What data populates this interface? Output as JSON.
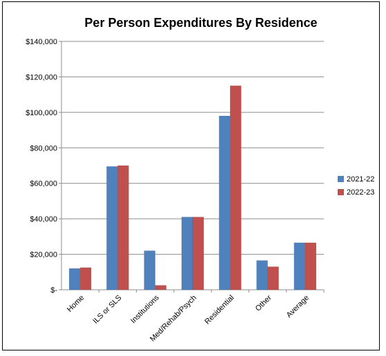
{
  "chart_data": {
    "type": "bar",
    "title": "Per Person Expenditures By Residence",
    "xlabel": "",
    "ylabel": "",
    "categories": [
      "Home",
      "ILS or SLS",
      "Institutions",
      "Med/Rehab/Psych",
      "Residential",
      "Other",
      "Average"
    ],
    "series": [
      {
        "name": "2021-22",
        "color": "#4F81BD",
        "values": [
          12000,
          69500,
          22000,
          41000,
          98000,
          16500,
          26500
        ]
      },
      {
        "name": "2022-23",
        "color": "#C0504D",
        "values": [
          12500,
          70000,
          2500,
          41000,
          115000,
          13000,
          26500
        ]
      }
    ],
    "ylim": [
      0,
      140000
    ],
    "y_ticks": [
      0,
      20000,
      40000,
      60000,
      80000,
      100000,
      120000,
      140000
    ],
    "y_tick_labels": [
      "$-",
      "$20,000",
      "$40,000",
      "$60,000",
      "$80,000",
      "$100,000",
      "$120,000",
      "$140,000"
    ],
    "grid": true,
    "legend_position": "right"
  }
}
